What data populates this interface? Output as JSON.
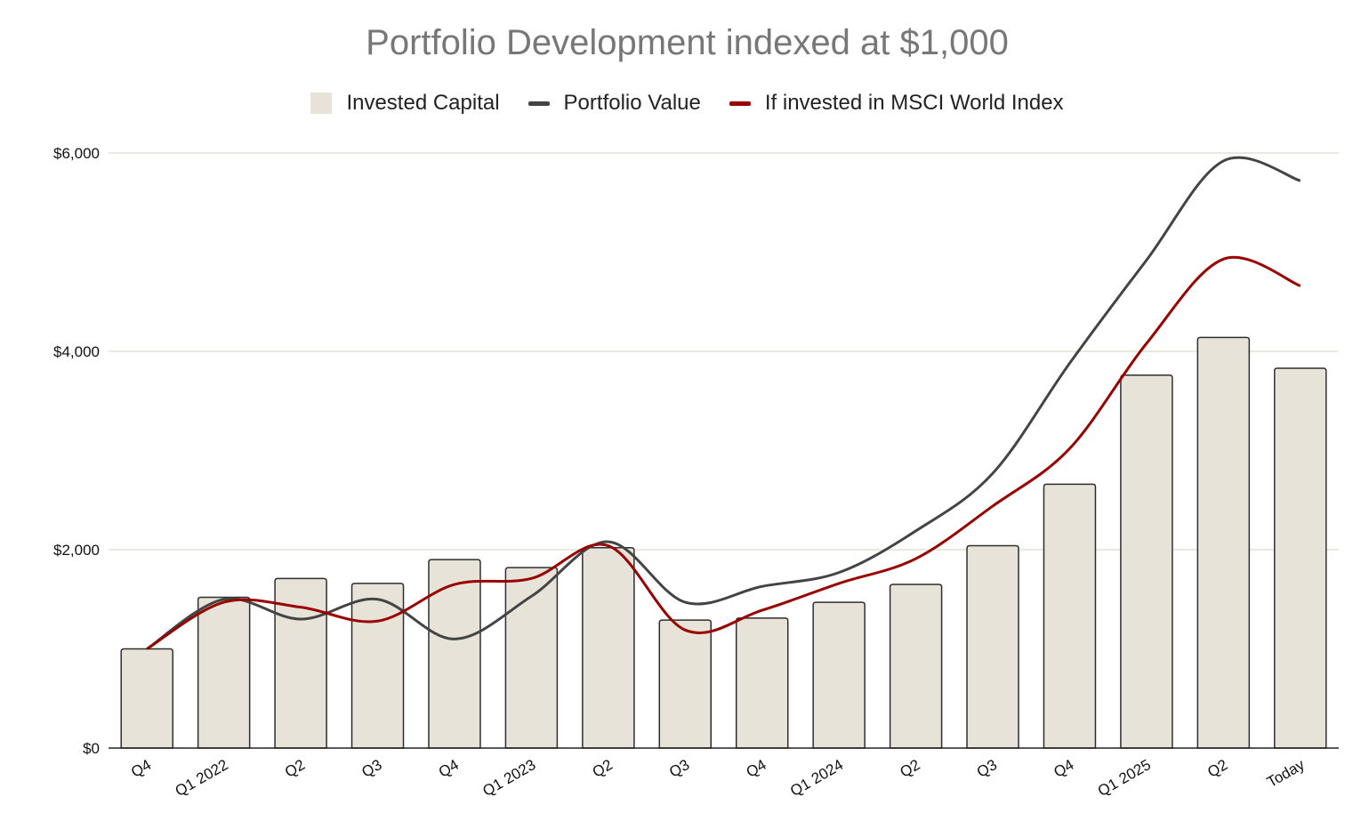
{
  "chart_data": {
    "type": "bar",
    "title": "Portfolio Development indexed at $1,000",
    "categories": [
      "Q4",
      "Q1 2022",
      "Q2",
      "Q3",
      "Q4",
      "Q1 2023",
      "Q2",
      "Q3",
      "Q4",
      "Q1 2024",
      "Q2",
      "Q3",
      "Q4",
      "Q1 2025",
      "Q2",
      "Today"
    ],
    "series": [
      {
        "name": "Invested Capital",
        "type": "bar",
        "color": "#e7e3d8",
        "values": [
          1000,
          1520,
          1710,
          1660,
          1900,
          1820,
          2020,
          1290,
          1310,
          1470,
          1650,
          2040,
          2660,
          3760,
          4140,
          3830
        ]
      },
      {
        "name": "Portfolio Value",
        "type": "line",
        "color": "#444444",
        "values": [
          1000,
          1500,
          1300,
          1500,
          1100,
          1530,
          2080,
          1470,
          1630,
          1770,
          2190,
          2770,
          3880,
          4920,
          5920,
          5720
        ]
      },
      {
        "name": "If invested in MSCI World Index",
        "type": "line",
        "color": "#990000",
        "values": [
          1000,
          1470,
          1420,
          1280,
          1650,
          1710,
          2040,
          1190,
          1390,
          1660,
          1910,
          2440,
          3020,
          4080,
          4930,
          4660
        ]
      }
    ],
    "y_ticks": [
      "$0",
      "$2,000",
      "$4,000",
      "$6,000"
    ],
    "ylim": [
      0,
      6000
    ],
    "grid": true,
    "legend_position": "top-center"
  }
}
